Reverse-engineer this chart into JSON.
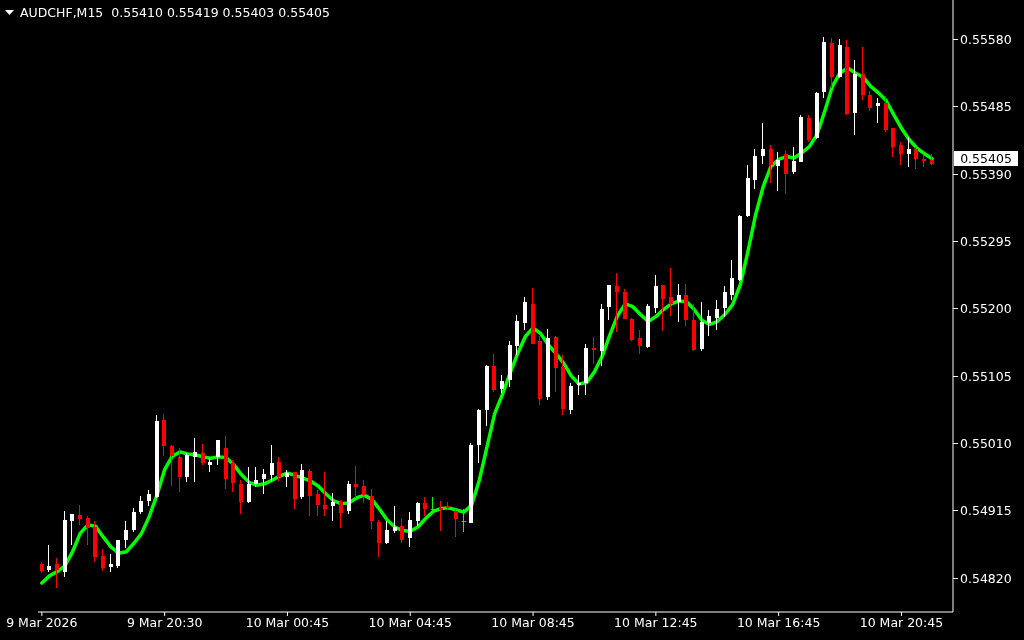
{
  "chart_data": {
    "type": "candlestick",
    "title": "AUDCHF,M15  0.55410 0.55419 0.55403 0.55405",
    "categories": [
      "9 Mar 2026",
      null,
      null,
      null,
      null,
      null,
      null,
      null,
      null,
      null,
      null,
      null,
      null,
      null,
      null,
      null,
      "9 Mar 20:30",
      null,
      null,
      null,
      null,
      null,
      null,
      null,
      null,
      null,
      null,
      null,
      null,
      null,
      null,
      null,
      "10 Mar 00:45",
      null,
      null,
      null,
      null,
      null,
      null,
      null,
      null,
      null,
      null,
      null,
      null,
      null,
      null,
      null,
      "10 Mar 04:45",
      null,
      null,
      null,
      null,
      null,
      null,
      null,
      null,
      null,
      null,
      null,
      null,
      null,
      null,
      null,
      "10 Mar 08:45",
      null,
      null,
      null,
      null,
      null,
      null,
      null,
      null,
      null,
      null,
      null,
      null,
      null,
      null,
      null,
      "10 Mar 12:45",
      null,
      null,
      null,
      null,
      null,
      null,
      null,
      null,
      null,
      null,
      null,
      null,
      null,
      null,
      null,
      "10 Mar 16:45",
      null,
      null,
      null,
      null,
      null,
      null,
      null,
      null,
      null,
      null,
      null,
      null,
      null,
      null,
      null,
      "10 Mar 20:45",
      null,
      null,
      null,
      null
    ],
    "ohlc": [
      [
        0.5484,
        0.54843,
        0.54827,
        0.5483
      ],
      [
        0.54832,
        0.54867,
        0.54828,
        0.54837
      ],
      [
        0.5484,
        0.54848,
        0.54806,
        0.54831
      ],
      [
        0.54829,
        0.54915,
        0.54822,
        0.54902
      ],
      [
        0.549,
        0.54911,
        0.54867,
        0.5491
      ],
      [
        0.54909,
        0.54923,
        0.54895,
        0.54903
      ],
      [
        0.54905,
        0.54907,
        0.54866,
        0.5489
      ],
      [
        0.54892,
        0.549,
        0.54843,
        0.54849
      ],
      [
        0.54851,
        0.54861,
        0.5483,
        0.54834
      ],
      [
        0.54836,
        0.54854,
        0.54829,
        0.5484
      ],
      [
        0.54837,
        0.54874,
        0.54834,
        0.54873
      ],
      [
        0.54873,
        0.549,
        0.54862,
        0.54888
      ],
      [
        0.54888,
        0.54919,
        0.54885,
        0.54913
      ],
      [
        0.54913,
        0.54936,
        0.54911,
        0.54929
      ],
      [
        0.54929,
        0.54944,
        0.54921,
        0.54939
      ],
      [
        0.54935,
        0.5505,
        0.54933,
        0.55042
      ],
      [
        0.55043,
        0.55052,
        0.54992,
        0.55006
      ],
      [
        0.55006,
        0.55008,
        0.5495,
        0.54992
      ],
      [
        0.54991,
        0.55003,
        0.54942,
        0.54962
      ],
      [
        0.54962,
        0.54996,
        0.54956,
        0.54994
      ],
      [
        0.54991,
        0.55018,
        0.54955,
        0.54998
      ],
      [
        0.54996,
        0.55009,
        0.5498,
        0.54983
      ],
      [
        0.54979,
        0.54989,
        0.54969,
        0.54984
      ],
      [
        0.54991,
        0.55015,
        0.54979,
        0.55015
      ],
      [
        0.55003,
        0.55021,
        0.54946,
        0.5496
      ],
      [
        0.54982,
        0.54987,
        0.54941,
        0.54954
      ],
      [
        0.54953,
        0.54958,
        0.54911,
        0.54928
      ],
      [
        0.54928,
        0.54977,
        0.54926,
        0.54953
      ],
      [
        0.54953,
        0.54977,
        0.54948,
        0.54959
      ],
      [
        0.5496,
        0.54974,
        0.54939,
        0.54967
      ],
      [
        0.54966,
        0.55008,
        0.54956,
        0.54982
      ],
      [
        0.54984,
        0.54991,
        0.54957,
        0.54963
      ],
      [
        0.54962,
        0.54973,
        0.54949,
        0.54968
      ],
      [
        0.54969,
        0.5497,
        0.54917,
        0.54932
      ],
      [
        0.54935,
        0.54981,
        0.54931,
        0.54973
      ],
      [
        0.54971,
        0.54974,
        0.54908,
        0.54936
      ],
      [
        0.54939,
        0.54944,
        0.54908,
        0.54923
      ],
      [
        0.54923,
        0.5497,
        0.54908,
        0.54917
      ],
      [
        0.54921,
        0.5494,
        0.549,
        0.54928
      ],
      [
        0.54927,
        0.5493,
        0.5489,
        0.54912
      ],
      [
        0.54914,
        0.54957,
        0.54911,
        0.54953
      ],
      [
        0.54953,
        0.54978,
        0.54933,
        0.54949
      ],
      [
        0.5495,
        0.54958,
        0.54926,
        0.54937
      ],
      [
        0.54936,
        0.54946,
        0.54889,
        0.549
      ],
      [
        0.54899,
        0.54902,
        0.54849,
        0.5487
      ],
      [
        0.5487,
        0.549,
        0.54868,
        0.54888
      ],
      [
        0.54886,
        0.54922,
        0.54884,
        0.54892
      ],
      [
        0.54893,
        0.54904,
        0.5487,
        0.54874
      ],
      [
        0.54877,
        0.54913,
        0.54864,
        0.54902
      ],
      [
        0.549,
        0.54927,
        0.54894,
        0.54926
      ],
      [
        0.54926,
        0.54935,
        0.54908,
        0.54917
      ],
      [
        0.54917,
        0.54935,
        0.54913,
        0.54917
      ],
      [
        0.54919,
        0.54929,
        0.54887,
        0.54916
      ],
      [
        0.54922,
        0.54927,
        0.54916,
        0.54919
      ],
      [
        0.54915,
        0.54918,
        0.54878,
        0.54903
      ],
      [
        0.549,
        0.54917,
        0.54885,
        0.549
      ],
      [
        0.54898,
        0.5501,
        0.54897,
        0.55008
      ],
      [
        0.55008,
        0.55059,
        0.54983,
        0.55057
      ],
      [
        0.55057,
        0.55121,
        0.55035,
        0.5512
      ],
      [
        0.5512,
        0.55136,
        0.55082,
        0.55086
      ],
      [
        0.55087,
        0.55107,
        0.55081,
        0.55098
      ],
      [
        0.55099,
        0.55154,
        0.55089,
        0.55149
      ],
      [
        0.55147,
        0.55192,
        0.55135,
        0.55183
      ],
      [
        0.5518,
        0.55217,
        0.5517,
        0.55209
      ],
      [
        0.55207,
        0.55229,
        0.5515,
        0.55151
      ],
      [
        0.55155,
        0.55162,
        0.55064,
        0.55073
      ],
      [
        0.55075,
        0.55172,
        0.55071,
        0.55159
      ],
      [
        0.5516,
        0.55162,
        0.55083,
        0.55117
      ],
      [
        0.55118,
        0.55135,
        0.5505,
        0.55058
      ],
      [
        0.55057,
        0.55096,
        0.55052,
        0.55091
      ],
      [
        0.55093,
        0.55107,
        0.55079,
        0.55095
      ],
      [
        0.55096,
        0.55151,
        0.55079,
        0.55145
      ],
      [
        0.55145,
        0.5516,
        0.55122,
        0.55142
      ],
      [
        0.55141,
        0.55207,
        0.5512,
        0.552
      ],
      [
        0.55202,
        0.55234,
        0.55184,
        0.55233
      ],
      [
        0.55232,
        0.5525,
        0.55168,
        0.55224
      ],
      [
        0.55224,
        0.55228,
        0.55185,
        0.55186
      ],
      [
        0.55185,
        0.55187,
        0.55154,
        0.55156
      ],
      [
        0.55159,
        0.5517,
        0.55136,
        0.55147
      ],
      [
        0.55146,
        0.55207,
        0.55145,
        0.55204
      ],
      [
        0.55201,
        0.55248,
        0.55194,
        0.55232
      ],
      [
        0.55233,
        0.55234,
        0.55169,
        0.55214
      ],
      [
        0.55217,
        0.55257,
        0.5519,
        0.55207
      ],
      [
        0.5521,
        0.55235,
        0.55182,
        0.5522
      ],
      [
        0.5522,
        0.55235,
        0.55176,
        0.55184
      ],
      [
        0.55184,
        0.55207,
        0.5514,
        0.55142
      ],
      [
        0.55143,
        0.5521,
        0.55141,
        0.55181
      ],
      [
        0.5518,
        0.55199,
        0.55161,
        0.5519
      ],
      [
        0.55187,
        0.55213,
        0.5517,
        0.552
      ],
      [
        0.55201,
        0.55232,
        0.55189,
        0.55224
      ],
      [
        0.5522,
        0.55269,
        0.55213,
        0.55244
      ],
      [
        0.55241,
        0.55333,
        0.55239,
        0.55331
      ],
      [
        0.55331,
        0.55403,
        0.5533,
        0.55385
      ],
      [
        0.55382,
        0.55426,
        0.55369,
        0.55416
      ],
      [
        0.55416,
        0.55463,
        0.55405,
        0.55426
      ],
      [
        0.55425,
        0.55432,
        0.55378,
        0.55403
      ],
      [
        0.55402,
        0.55422,
        0.55366,
        0.5541
      ],
      [
        0.55418,
        0.55423,
        0.55362,
        0.55391
      ],
      [
        0.55393,
        0.55429,
        0.55391,
        0.55409
      ],
      [
        0.55408,
        0.55473,
        0.55407,
        0.55471
      ],
      [
        0.55469,
        0.55473,
        0.55436,
        0.55439
      ],
      [
        0.55441,
        0.55506,
        0.5544,
        0.55505
      ],
      [
        0.55506,
        0.55584,
        0.55498,
        0.55577
      ],
      [
        0.55575,
        0.55582,
        0.55512,
        0.55528
      ],
      [
        0.55528,
        0.55581,
        0.55526,
        0.55572
      ],
      [
        0.5557,
        0.5558,
        0.55474,
        0.55475
      ],
      [
        0.55477,
        0.55552,
        0.55446,
        0.55531
      ],
      [
        0.55532,
        0.5557,
        0.55495,
        0.55502
      ],
      [
        0.55502,
        0.55508,
        0.5548,
        0.55484
      ],
      [
        0.55486,
        0.55497,
        0.55462,
        0.55491
      ],
      [
        0.55491,
        0.555,
        0.5545,
        0.55453
      ],
      [
        0.55455,
        0.55456,
        0.55415,
        0.55428
      ],
      [
        0.55432,
        0.55436,
        0.55403,
        0.55419
      ],
      [
        0.55418,
        0.55442,
        0.554,
        0.55426
      ],
      [
        0.55425,
        0.55429,
        0.55398,
        0.55412
      ],
      [
        0.55412,
        0.55417,
        0.554,
        0.55409
      ],
      [
        0.5541,
        0.55419,
        0.55403,
        0.55405
      ]
    ],
    "colors": [
      "#ff0000",
      "#ffffff",
      "#ff0000",
      "#ffffff",
      "#ffffff",
      "#ff0000",
      "#ff0000",
      "#ff0000",
      "#ff0000",
      "#ffffff",
      "#ffffff",
      "#ffffff",
      "#ffffff",
      "#ffffff",
      "#ffffff",
      "#ffffff",
      "#ff0000",
      "#ff0000",
      "#ff0000",
      "#ffffff",
      "#ffffff",
      "#ff0000",
      "#ffffff",
      "#ffffff",
      "#ff0000",
      "#ff0000",
      "#ff0000",
      "#ffffff",
      "#ffffff",
      "#ffffff",
      "#ffffff",
      "#ff0000",
      "#ffffff",
      "#ff0000",
      "#ffffff",
      "#ff0000",
      "#ff0000",
      "#ff0000",
      "#ffffff",
      "#ff0000",
      "#ffffff",
      "#ff0000",
      "#ff0000",
      "#ff0000",
      "#ff0000",
      "#ffffff",
      "#ffffff",
      "#ff0000",
      "#ffffff",
      "#ffffff",
      "#ff0000",
      "#00ff00",
      "#ff0000",
      "#ff0000",
      "#ff0000",
      "#00ff00",
      "#ffffff",
      "#ffffff",
      "#ffffff",
      "#ff0000",
      "#ffffff",
      "#ffffff",
      "#ffffff",
      "#ffffff",
      "#ff0000",
      "#ff0000",
      "#ffffff",
      "#ff0000",
      "#ff0000",
      "#ffffff",
      "#ffffff",
      "#ffffff",
      "#ff0000",
      "#ffffff",
      "#ffffff",
      "#ff0000",
      "#ff0000",
      "#ff0000",
      "#ff0000",
      "#ffffff",
      "#ffffff",
      "#ff0000",
      "#ff0000",
      "#ffffff",
      "#ff0000",
      "#ff0000",
      "#ffffff",
      "#ffffff",
      "#ffffff",
      "#ffffff",
      "#ffffff",
      "#ffffff",
      "#ffffff",
      "#ffffff",
      "#ffffff",
      "#ff0000",
      "#ffffff",
      "#ff0000",
      "#ffffff",
      "#ffffff",
      "#ff0000",
      "#ffffff",
      "#ffffff",
      "#ff0000",
      "#ffffff",
      "#ff0000",
      "#ffffff",
      "#ff0000",
      "#ff0000",
      "#ffffff",
      "#ff0000",
      "#ff0000",
      "#ff0000",
      "#ffffff",
      "#ff0000",
      "#ff0000",
      "#ff0000"
    ],
    "series": [
      {
        "type": "line",
        "color": "#00ff00",
        "values": [
          0.54813,
          0.54823,
          0.54829,
          0.54837,
          0.54857,
          0.54883,
          0.54895,
          0.54893,
          0.54878,
          0.54864,
          0.54855,
          0.54857,
          0.54869,
          0.54883,
          0.54907,
          0.54937,
          0.54973,
          0.54992,
          0.54998,
          0.54995,
          0.54994,
          0.54991,
          0.54989,
          0.54991,
          0.5499,
          0.5498,
          0.54966,
          0.54955,
          0.54951,
          0.54953,
          0.54958,
          0.54964,
          0.54968,
          0.54965,
          0.54961,
          0.54957,
          0.5495,
          0.54939,
          0.54929,
          0.54925,
          0.54926,
          0.54933,
          0.54937,
          0.54931,
          0.54917,
          0.54902,
          0.54892,
          0.54887,
          0.54886,
          0.54892,
          0.54904,
          0.54914,
          0.54918,
          0.54919,
          0.54916,
          0.54913,
          0.54923,
          0.54958,
          0.55005,
          0.55052,
          0.55079,
          0.55109,
          0.55137,
          0.55161,
          0.55173,
          0.55165,
          0.55149,
          0.55137,
          0.55123,
          0.55105,
          0.55094,
          0.55096,
          0.55111,
          0.55133,
          0.55163,
          0.5519,
          0.55207,
          0.55203,
          0.55192,
          0.55182,
          0.55189,
          0.55199,
          0.55207,
          0.55211,
          0.5521,
          0.55199,
          0.55184,
          0.55178,
          0.55182,
          0.55192,
          0.55206,
          0.55234,
          0.55281,
          0.55333,
          0.55373,
          0.55401,
          0.55411,
          0.55415,
          0.55413,
          0.5542,
          0.55429,
          0.55446,
          0.55479,
          0.55514,
          0.55533,
          0.5554,
          0.55533,
          0.55527,
          0.55514,
          0.55505,
          0.55494,
          0.55474,
          0.55455,
          0.55439,
          0.55427,
          0.55419,
          0.55412
        ]
      }
    ],
    "ylim": [
      0.54772,
      0.55636
    ],
    "yticks": [
      {
        "value": 0.5482,
        "label": "0.54820"
      },
      0.54915,
      {
        "value": 0.5501,
        "label": "0.55010"
      },
      0.55105,
      {
        "value": 0.552,
        "label": "0.55200"
      },
      0.55295,
      {
        "value": 0.5539,
        "label": "0.55390"
      },
      0.55485,
      {
        "value": 0.5558,
        "label": "0.55580"
      }
    ],
    "annotations": [
      "0.55405"
    ]
  }
}
